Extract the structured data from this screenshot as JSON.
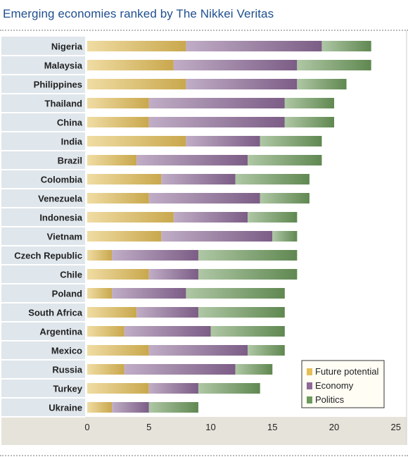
{
  "header": {
    "title": "Emerging economies ranked by The Nikkei Veritas"
  },
  "colors": {
    "future": "#e4bf58",
    "economy": "#8d6a98",
    "politics": "#6d9a5c",
    "label_band": "#dfe6ec",
    "plot_bg": "#ffffff",
    "axis_band": "#e6e3da"
  },
  "chart_data": {
    "type": "bar",
    "orientation": "horizontal",
    "stacked": true,
    "title": "Emerging economies ranked by The Nikkei Veritas",
    "xlim": [
      0,
      25
    ],
    "x_ticks": [
      0,
      5,
      10,
      15,
      20,
      25
    ],
    "grid": false,
    "legend_position": "bottom-right",
    "categories": [
      "Nigeria",
      "Malaysia",
      "Philippines",
      "Thailand",
      "China",
      "India",
      "Brazil",
      "Colombia",
      "Venezuela",
      "Indonesia",
      "Vietnam",
      "Czech Republic",
      "Chile",
      "Poland",
      "South Africa",
      "Argentina",
      "Mexico",
      "Russia",
      "Turkey",
      "Ukraine"
    ],
    "series": [
      {
        "name": "Future potential",
        "values": [
          8,
          7,
          8,
          5,
          5,
          8,
          4,
          6,
          5,
          7,
          6,
          2,
          5,
          2,
          4,
          3,
          5,
          3,
          5,
          2
        ]
      },
      {
        "name": "Economy",
        "values": [
          11,
          10,
          9,
          11,
          11,
          6,
          9,
          6,
          9,
          6,
          9,
          7,
          4,
          6,
          5,
          7,
          8,
          9,
          4,
          3
        ]
      },
      {
        "name": "Politics",
        "values": [
          4,
          6,
          4,
          4,
          4,
          5,
          6,
          6,
          4,
          4,
          2,
          8,
          8,
          8,
          7,
          6,
          3,
          3,
          5,
          4
        ]
      }
    ]
  }
}
